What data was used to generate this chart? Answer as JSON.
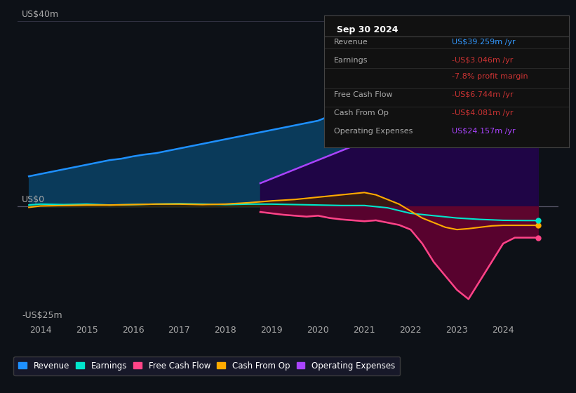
{
  "bg_color": "#0d1117",
  "plot_bg_color": "#0d1117",
  "ylabel_top": "US$40m",
  "ylabel_zero": "US$0",
  "ylabel_bottom": "-US$25m",
  "ylim": [
    -25,
    42
  ],
  "xlim": [
    2013.5,
    2025.2
  ],
  "xticks": [
    2014,
    2015,
    2016,
    2017,
    2018,
    2019,
    2020,
    2021,
    2022,
    2023,
    2024
  ],
  "grid_color": "#333344",
  "zero_line_color": "#555566",
  "info_box": {
    "title": "Sep 30 2024",
    "rows": [
      {
        "label": "Revenue",
        "value": "US$39.259m /yr",
        "value_color": "#3399ff"
      },
      {
        "label": "Earnings",
        "value": "-US$3.046m /yr",
        "value_color": "#cc3333"
      },
      {
        "label": "",
        "value": "-7.8% profit margin",
        "value_color": "#cc3333"
      },
      {
        "label": "Free Cash Flow",
        "value": "-US$6.744m /yr",
        "value_color": "#cc3333"
      },
      {
        "label": "Cash From Op",
        "value": "-US$4.081m /yr",
        "value_color": "#cc3333"
      },
      {
        "label": "Operating Expenses",
        "value": "US$24.157m /yr",
        "value_color": "#aa44ff"
      }
    ]
  },
  "series": {
    "revenue": {
      "color": "#1e90ff",
      "fill_color": "#0a3a5a",
      "label": "Revenue"
    },
    "earnings": {
      "color": "#00e5cc",
      "fill_color": "#00443a",
      "label": "Earnings"
    },
    "free_cash_flow": {
      "color": "#ff4488",
      "fill_color": "#660033",
      "label": "Free Cash Flow"
    },
    "cash_from_op": {
      "color": "#ffaa00",
      "fill_color": "#442200",
      "label": "Cash From Op"
    },
    "op_expenses": {
      "color": "#aa44ff",
      "fill_color": "#220044",
      "label": "Operating Expenses"
    }
  },
  "revenue_data": {
    "x": [
      2013.75,
      2014.0,
      2014.25,
      2014.5,
      2014.75,
      2015.0,
      2015.25,
      2015.5,
      2015.75,
      2016.0,
      2016.25,
      2016.5,
      2016.75,
      2017.0,
      2017.25,
      2017.5,
      2017.75,
      2018.0,
      2018.25,
      2018.5,
      2018.75,
      2019.0,
      2019.25,
      2019.5,
      2019.75,
      2020.0,
      2020.25,
      2020.5,
      2020.75,
      2021.0,
      2021.25,
      2021.5,
      2021.75,
      2022.0,
      2022.25,
      2022.5,
      2022.75,
      2023.0,
      2023.25,
      2023.5,
      2023.75,
      2024.0,
      2024.25,
      2024.5,
      2024.75
    ],
    "y": [
      6.5,
      7.0,
      7.5,
      8.0,
      8.5,
      9.0,
      9.5,
      10.0,
      10.3,
      10.8,
      11.2,
      11.5,
      12.0,
      12.5,
      13.0,
      13.5,
      14.0,
      14.5,
      15.0,
      15.5,
      16.0,
      16.5,
      17.0,
      17.5,
      18.0,
      18.5,
      19.5,
      20.5,
      21.5,
      22.5,
      24.0,
      25.5,
      27.0,
      28.5,
      30.0,
      31.5,
      33.0,
      34.5,
      36.0,
      37.0,
      37.5,
      38.0,
      38.5,
      39.0,
      39.259
    ]
  },
  "earnings_data": {
    "x": [
      2013.75,
      2014.0,
      2014.5,
      2015.0,
      2015.5,
      2016.0,
      2016.5,
      2017.0,
      2017.5,
      2018.0,
      2018.5,
      2019.0,
      2019.5,
      2020.0,
      2020.5,
      2021.0,
      2021.5,
      2022.0,
      2022.5,
      2023.0,
      2023.5,
      2024.0,
      2024.5,
      2024.75
    ],
    "y": [
      0.3,
      0.5,
      0.4,
      0.5,
      0.3,
      0.4,
      0.5,
      0.6,
      0.5,
      0.4,
      0.5,
      0.5,
      0.4,
      0.3,
      0.2,
      0.2,
      -0.3,
      -1.5,
      -2.0,
      -2.5,
      -2.8,
      -3.0,
      -3.046,
      -3.046
    ]
  },
  "free_cash_flow_data": {
    "x": [
      2018.75,
      2019.0,
      2019.25,
      2019.5,
      2019.75,
      2020.0,
      2020.25,
      2020.5,
      2020.75,
      2021.0,
      2021.25,
      2021.5,
      2021.75,
      2022.0,
      2022.25,
      2022.5,
      2022.75,
      2023.0,
      2023.25,
      2023.5,
      2023.75,
      2024.0,
      2024.25,
      2024.5,
      2024.75
    ],
    "y": [
      -1.2,
      -1.5,
      -1.8,
      -2.0,
      -2.2,
      -2.0,
      -2.5,
      -2.8,
      -3.0,
      -3.2,
      -3.0,
      -3.5,
      -4.0,
      -5.0,
      -8.0,
      -12.0,
      -15.0,
      -18.0,
      -20.0,
      -16.0,
      -12.0,
      -8.0,
      -6.744,
      -6.744,
      -6.744
    ]
  },
  "cash_from_op_data": {
    "x": [
      2013.75,
      2014.0,
      2014.5,
      2015.0,
      2015.5,
      2016.0,
      2016.5,
      2017.0,
      2017.5,
      2018.0,
      2018.5,
      2019.0,
      2019.5,
      2020.0,
      2020.5,
      2021.0,
      2021.25,
      2021.5,
      2021.75,
      2022.0,
      2022.25,
      2022.5,
      2022.75,
      2023.0,
      2023.25,
      2023.5,
      2023.75,
      2024.0,
      2024.25,
      2024.5,
      2024.75
    ],
    "y": [
      -0.2,
      0.1,
      0.2,
      0.3,
      0.3,
      0.4,
      0.5,
      0.5,
      0.4,
      0.5,
      0.8,
      1.2,
      1.5,
      2.0,
      2.5,
      3.0,
      2.5,
      1.5,
      0.5,
      -1.0,
      -2.5,
      -3.5,
      -4.5,
      -5.0,
      -4.8,
      -4.5,
      -4.2,
      -4.081,
      -4.081,
      -4.081,
      -4.081
    ]
  },
  "op_expenses_data": {
    "x": [
      2018.75,
      2019.0,
      2019.25,
      2019.5,
      2019.75,
      2020.0,
      2020.25,
      2020.5,
      2020.75,
      2021.0,
      2021.25,
      2021.5,
      2021.75,
      2022.0,
      2022.25,
      2022.5,
      2022.75,
      2023.0,
      2023.25,
      2023.5,
      2023.75,
      2024.0,
      2024.25,
      2024.5,
      2024.75
    ],
    "y": [
      5.0,
      6.0,
      7.0,
      8.0,
      9.0,
      10.0,
      11.0,
      12.0,
      13.0,
      14.0,
      15.0,
      16.5,
      18.0,
      19.5,
      21.0,
      22.0,
      22.5,
      23.0,
      23.5,
      24.0,
      24.157,
      24.157,
      24.157,
      24.157,
      24.157
    ]
  },
  "legend_items": [
    {
      "label": "Revenue",
      "color": "#1e90ff"
    },
    {
      "label": "Earnings",
      "color": "#00e5cc"
    },
    {
      "label": "Free Cash Flow",
      "color": "#ff4488"
    },
    {
      "label": "Cash From Op",
      "color": "#ffaa00"
    },
    {
      "label": "Operating Expenses",
      "color": "#aa44ff"
    }
  ]
}
